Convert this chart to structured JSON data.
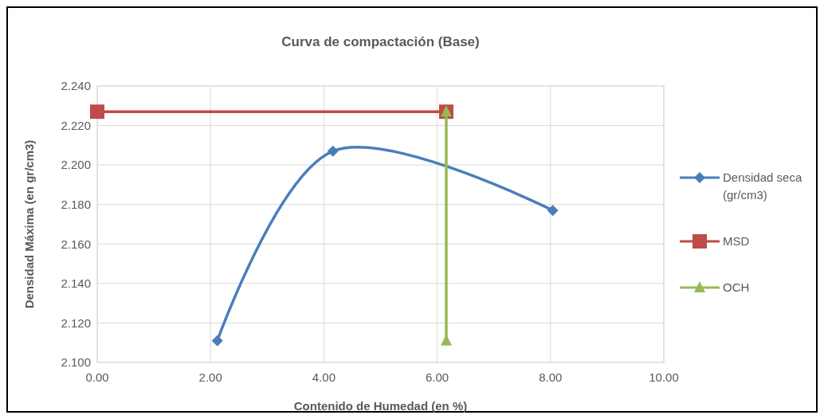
{
  "chart_data": {
    "type": "line",
    "title": "Curva de compactación (Base)",
    "xlabel": "Contenido de Humedad (en %)",
    "ylabel": "Densidad Máxima (en gr/cm3)",
    "xlim": [
      0,
      10
    ],
    "xticks": [
      {
        "value": 0,
        "label": "0.00"
      },
      {
        "value": 2,
        "label": "2.00"
      },
      {
        "value": 4,
        "label": "4.00"
      },
      {
        "value": 6,
        "label": "6.00"
      },
      {
        "value": 8,
        "label": "8.00"
      },
      {
        "value": 10,
        "label": "10.00"
      }
    ],
    "ylim": [
      2.1,
      2.24
    ],
    "yticks": [
      {
        "value": 2.1,
        "label": "2.100"
      },
      {
        "value": 2.12,
        "label": "2.120"
      },
      {
        "value": 2.14,
        "label": "2.140"
      },
      {
        "value": 2.16,
        "label": "2.160"
      },
      {
        "value": 2.18,
        "label": "2.180"
      },
      {
        "value": 2.2,
        "label": "2.200"
      },
      {
        "value": 2.22,
        "label": "2.220"
      },
      {
        "value": 2.24,
        "label": "2.240"
      }
    ],
    "grid": true,
    "legend": "right",
    "series": [
      {
        "name": "Densidad seca (gr/cm3)",
        "color": "#4a7ebb",
        "x": [
          2.12,
          4.16,
          8.04
        ],
        "values": [
          2.111,
          2.207,
          2.177
        ],
        "marker": "diamond"
      },
      {
        "name": "MSD",
        "color": "#be4b48",
        "x": [
          0,
          6.16
        ],
        "values": [
          2.227,
          2.227
        ],
        "marker": "square"
      },
      {
        "name": "OCH",
        "color": "#98b954",
        "x": [
          6.16,
          6.16
        ],
        "values": [
          2.111,
          2.227
        ],
        "marker": "triangle"
      }
    ]
  }
}
